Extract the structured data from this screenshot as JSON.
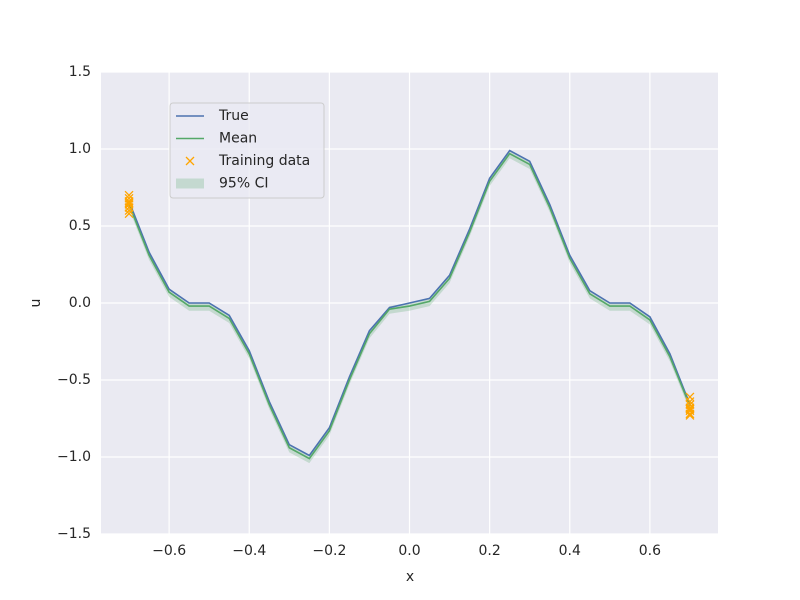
{
  "chart_data": {
    "type": "line",
    "xlabel": "x",
    "ylabel": "u",
    "x": [
      -0.7,
      -0.65,
      -0.6,
      -0.55,
      -0.5,
      -0.45,
      -0.4,
      -0.35,
      -0.3,
      -0.25,
      -0.2,
      -0.15,
      -0.1,
      -0.05,
      0,
      0.05,
      0.1,
      0.15,
      0.2,
      0.25,
      0.3,
      0.35,
      0.4,
      0.45,
      0.5,
      0.55,
      0.6,
      0.65,
      0.7
    ],
    "series": [
      {
        "name": "True",
        "type": "line",
        "color": "#4c72b0",
        "values": [
          0.66,
          0.33,
          0.09,
          0.0,
          0.0,
          -0.08,
          -0.31,
          -0.64,
          -0.92,
          -0.99,
          -0.81,
          -0.48,
          -0.18,
          -0.03,
          0,
          0.03,
          0.18,
          0.48,
          0.81,
          0.99,
          0.92,
          0.64,
          0.31,
          0.08,
          0.0,
          0.0,
          -0.09,
          -0.33,
          -0.66
        ]
      },
      {
        "name": "Mean",
        "type": "line",
        "color": "#55a868",
        "values": [
          0.64,
          0.31,
          0.07,
          -0.02,
          -0.02,
          -0.1,
          -0.33,
          -0.66,
          -0.94,
          -1.01,
          -0.83,
          -0.5,
          -0.2,
          -0.04,
          -0.02,
          0.01,
          0.16,
          0.46,
          0.79,
          0.97,
          0.9,
          0.62,
          0.29,
          0.06,
          -0.02,
          -0.02,
          -0.11,
          -0.35,
          -0.67
        ]
      },
      {
        "name": "Training data",
        "type": "scatter",
        "color": "#ffa500",
        "x": [
          -0.7,
          -0.7,
          -0.7,
          -0.7,
          -0.7,
          -0.7,
          -0.7,
          -0.7,
          0.7,
          0.7,
          0.7,
          0.7,
          0.7,
          0.7,
          0.7,
          0.7
        ],
        "values": [
          0.7,
          0.68,
          0.66,
          0.65,
          0.64,
          0.62,
          0.6,
          0.58,
          -0.61,
          -0.64,
          -0.66,
          -0.68,
          -0.69,
          -0.7,
          -0.72,
          -0.73
        ]
      },
      {
        "name": "95% CI",
        "type": "band",
        "color": "#55a868",
        "lower": [
          0.61,
          0.28,
          0.04,
          -0.05,
          -0.05,
          -0.13,
          -0.36,
          -0.69,
          -0.97,
          -1.04,
          -0.86,
          -0.53,
          -0.23,
          -0.07,
          -0.05,
          -0.02,
          0.13,
          0.43,
          0.76,
          0.94,
          0.87,
          0.59,
          0.26,
          0.03,
          -0.05,
          -0.05,
          -0.14,
          -0.38,
          -0.7
        ],
        "upper": [
          0.66,
          0.33,
          0.09,
          0.0,
          0.0,
          -0.08,
          -0.31,
          -0.64,
          -0.92,
          -0.99,
          -0.81,
          -0.48,
          -0.18,
          -0.02,
          0.0,
          0.03,
          0.18,
          0.48,
          0.81,
          0.99,
          0.92,
          0.64,
          0.31,
          0.08,
          0.0,
          0.0,
          -0.09,
          -0.33,
          -0.65
        ]
      }
    ],
    "xlim": [
      -0.77,
      0.77
    ],
    "xticks": [
      {
        "value": -0.6,
        "label": "−0.6"
      },
      {
        "value": -0.4,
        "label": "−0.4"
      },
      {
        "value": -0.2,
        "label": "−0.2"
      },
      {
        "value": 0,
        "label": "0.0"
      },
      0.2,
      0.4,
      0.6
    ],
    "ylim": [
      -1.5,
      1.5
    ],
    "yticks": [
      {
        "value": -1.5,
        "label": "−1.5"
      },
      {
        "value": -1,
        "label": "−1.0"
      },
      {
        "value": -0.5,
        "label": "−0.5"
      },
      {
        "value": 0,
        "label": "0.0"
      },
      0.5,
      {
        "value": 1,
        "label": "1.0"
      },
      1.5
    ],
    "grid": true,
    "legend": "upper left"
  }
}
